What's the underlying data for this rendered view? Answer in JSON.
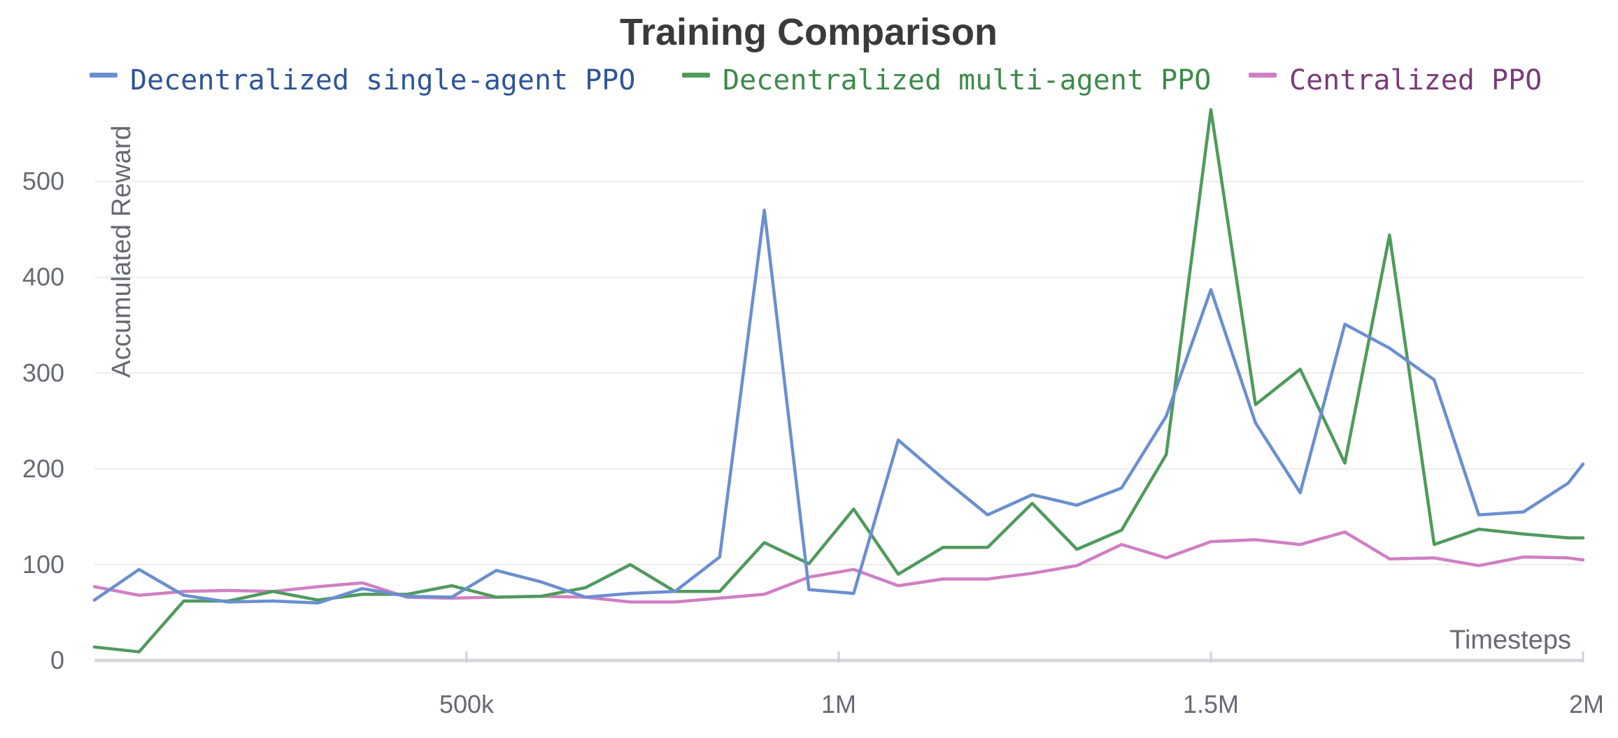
{
  "chart_data": {
    "type": "line",
    "title": "Training Comparison",
    "xlabel": "Timesteps",
    "ylabel": "Accumulated Reward",
    "xlim": [
      0,
      2000000
    ],
    "ylim": [
      0,
      580
    ],
    "x_ticks": [
      500000,
      1000000,
      1500000,
      2000000
    ],
    "x_tick_labels": [
      "500k",
      "1M",
      "1.5M",
      "2M"
    ],
    "y_ticks": [
      0,
      100,
      200,
      300,
      400,
      500
    ],
    "y_tick_labels": [
      "0",
      "100",
      "200",
      "300",
      "400",
      "500"
    ],
    "grid": true,
    "legend_position": "top",
    "x": [
      0,
      60000,
      120000,
      180000,
      240000,
      300000,
      360000,
      420000,
      480000,
      540000,
      600000,
      660000,
      720000,
      780000,
      840000,
      900000,
      960000,
      1020000,
      1080000,
      1140000,
      1200000,
      1260000,
      1320000,
      1380000,
      1440000,
      1500000,
      1560000,
      1620000,
      1680000,
      1740000,
      1800000,
      1860000,
      1920000,
      1980000,
      2000000
    ],
    "series": [
      {
        "name": "Decentralized single-agent PPO",
        "color": "#6a8fd0",
        "legend_color": "#2f5597",
        "values": [
          63,
          95,
          68,
          61,
          62,
          60,
          75,
          67,
          66,
          94,
          82,
          66,
          70,
          72,
          108,
          470,
          74,
          70,
          230,
          190,
          152,
          173,
          162,
          180,
          255,
          387,
          248,
          175,
          351,
          326,
          293,
          152,
          155,
          185,
          205
        ]
      },
      {
        "name": "Decentralized multi-agent PPO",
        "color": "#4f9a5c",
        "legend_color": "#3d8a4b",
        "values": [
          14,
          9,
          62,
          62,
          72,
          63,
          69,
          69,
          78,
          66,
          67,
          76,
          100,
          72,
          72,
          123,
          101,
          158,
          90,
          118,
          118,
          164,
          116,
          136,
          215,
          575,
          267,
          304,
          206,
          444,
          121,
          137,
          132,
          128,
          128
        ]
      },
      {
        "name": "Centralized PPO",
        "color": "#d07fc4",
        "legend_color": "#7a3b78",
        "values": [
          77,
          68,
          72,
          73,
          72,
          77,
          81,
          66,
          65,
          66,
          67,
          66,
          61,
          61,
          65,
          69,
          87,
          95,
          78,
          85,
          85,
          91,
          99,
          121,
          107,
          124,
          126,
          121,
          134,
          106,
          107,
          99,
          108,
          107,
          105
        ]
      }
    ]
  }
}
